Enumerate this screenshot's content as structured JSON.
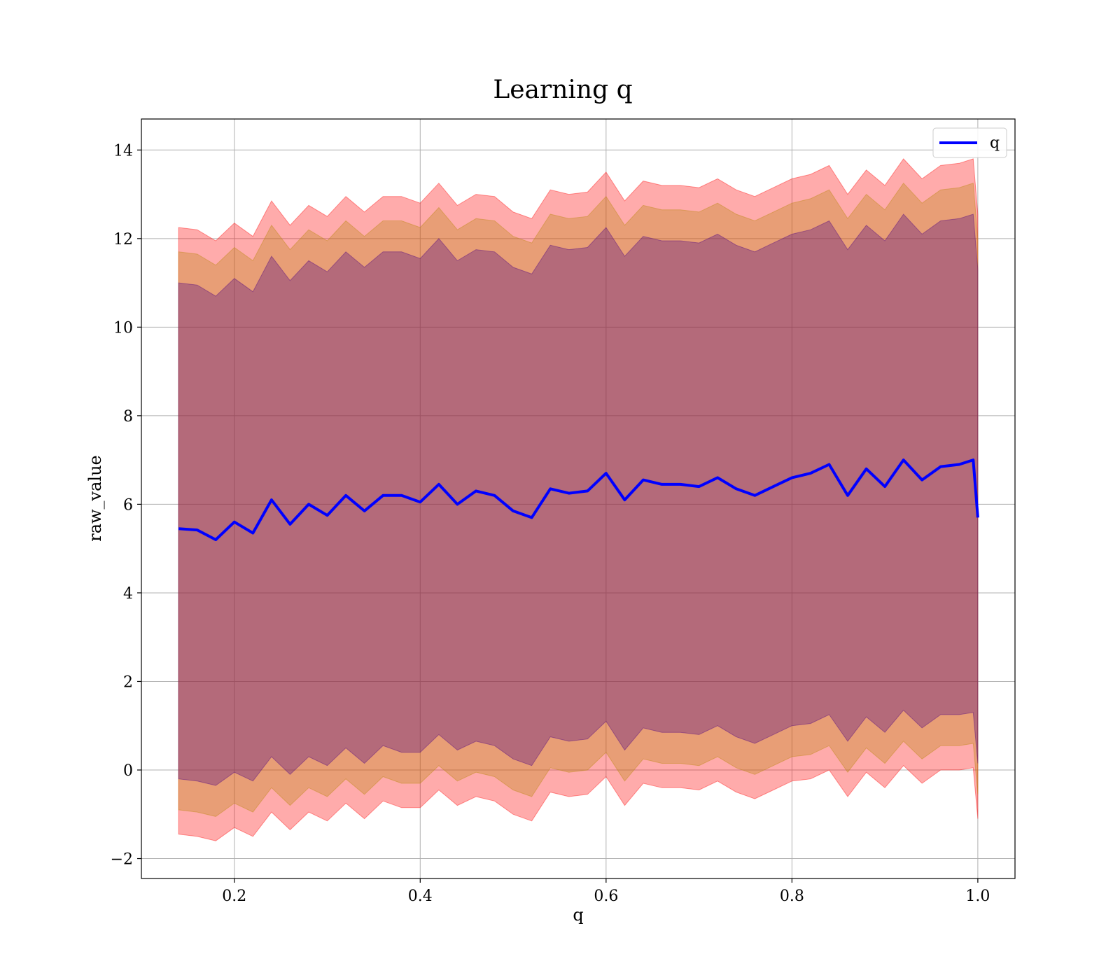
{
  "chart_data": {
    "type": "area",
    "title": "Learning q",
    "xlabel": "q",
    "ylabel": "raw_value",
    "xlim": [
      0.1,
      1.04
    ],
    "ylim": [
      -2.45,
      14.7
    ],
    "grid": true,
    "legend_placement": "top-right",
    "x_ticks": [
      0.2,
      0.4,
      0.6,
      0.8,
      1.0
    ],
    "x_tick_labels": [
      "0.2",
      "0.4",
      "0.6",
      "0.8",
      "1.0"
    ],
    "y_ticks": [
      -2,
      0,
      2,
      4,
      6,
      8,
      10,
      12,
      14
    ],
    "y_tick_labels": [
      "−2",
      "0",
      "2",
      "4",
      "6",
      "8",
      "10",
      "12",
      "14"
    ],
    "x": [
      0.14,
      0.16,
      0.18,
      0.2,
      0.22,
      0.24,
      0.26,
      0.28,
      0.3,
      0.32,
      0.34,
      0.36,
      0.38,
      0.4,
      0.42,
      0.44,
      0.46,
      0.48,
      0.5,
      0.52,
      0.54,
      0.56,
      0.58,
      0.6,
      0.62,
      0.64,
      0.66,
      0.68,
      0.7,
      0.72,
      0.74,
      0.76,
      0.78,
      0.8,
      0.82,
      0.84,
      0.86,
      0.88,
      0.9,
      0.92,
      0.94,
      0.96,
      0.98,
      0.995,
      1.0
    ],
    "series": [
      {
        "name": "q",
        "color": "#0000ff",
        "values": [
          5.45,
          5.42,
          5.2,
          5.6,
          5.35,
          6.1,
          5.55,
          6.0,
          5.75,
          6.2,
          5.85,
          6.2,
          6.2,
          6.05,
          6.45,
          6.0,
          6.3,
          6.2,
          5.85,
          5.7,
          6.35,
          6.25,
          6.3,
          6.7,
          6.1,
          6.55,
          6.45,
          6.45,
          6.4,
          6.6,
          6.35,
          6.2,
          6.4,
          6.6,
          6.7,
          6.9,
          6.2,
          6.8,
          6.4,
          7.0,
          6.55,
          6.85,
          6.9,
          7.0,
          5.7
        ]
      }
    ],
    "bands": [
      {
        "color": "#ff0000",
        "lower": [
          -1.45,
          -1.5,
          -1.6,
          -1.3,
          -1.5,
          -0.95,
          -1.35,
          -0.95,
          -1.15,
          -0.75,
          -1.1,
          -0.7,
          -0.85,
          -0.85,
          -0.45,
          -0.8,
          -0.6,
          -0.7,
          -1.0,
          -1.15,
          -0.5,
          -0.6,
          -0.55,
          -0.15,
          -0.8,
          -0.3,
          -0.4,
          -0.4,
          -0.45,
          -0.25,
          -0.5,
          -0.65,
          -0.45,
          -0.25,
          -0.2,
          0.0,
          -0.6,
          -0.05,
          -0.4,
          0.1,
          -0.3,
          0.0,
          0.0,
          0.05,
          -1.1
        ],
        "upper": [
          12.25,
          12.2,
          11.95,
          12.35,
          12.05,
          12.85,
          12.3,
          12.75,
          12.5,
          12.95,
          12.6,
          12.95,
          12.95,
          12.8,
          13.25,
          12.75,
          13.0,
          12.95,
          12.6,
          12.45,
          13.1,
          13.0,
          13.05,
          13.5,
          12.85,
          13.3,
          13.2,
          13.2,
          13.15,
          13.35,
          13.1,
          12.95,
          13.15,
          13.35,
          13.45,
          13.65,
          13.0,
          13.55,
          13.2,
          13.8,
          13.35,
          13.65,
          13.7,
          13.8,
          12.55
        ]
      },
      {
        "color": "#b8860b",
        "lower": [
          -0.9,
          -0.95,
          -1.05,
          -0.75,
          -0.95,
          -0.4,
          -0.8,
          -0.4,
          -0.6,
          -0.2,
          -0.55,
          -0.15,
          -0.3,
          -0.3,
          0.1,
          -0.25,
          -0.05,
          -0.15,
          -0.45,
          -0.6,
          0.05,
          -0.05,
          0.0,
          0.4,
          -0.25,
          0.25,
          0.15,
          0.15,
          0.1,
          0.3,
          0.05,
          -0.1,
          0.1,
          0.3,
          0.35,
          0.55,
          -0.05,
          0.5,
          0.15,
          0.65,
          0.25,
          0.55,
          0.55,
          0.6,
          -0.55
        ],
        "upper": [
          11.7,
          11.65,
          11.4,
          11.8,
          11.5,
          12.3,
          11.75,
          12.2,
          11.95,
          12.4,
          12.05,
          12.4,
          12.4,
          12.25,
          12.7,
          12.2,
          12.45,
          12.4,
          12.05,
          11.9,
          12.55,
          12.45,
          12.5,
          12.95,
          12.3,
          12.75,
          12.65,
          12.65,
          12.6,
          12.8,
          12.55,
          12.4,
          12.6,
          12.8,
          12.9,
          13.1,
          12.45,
          13.0,
          12.65,
          13.25,
          12.8,
          13.1,
          13.15,
          13.25,
          12.0
        ]
      },
      {
        "color": "#4b0082",
        "lower": [
          -0.2,
          -0.25,
          -0.35,
          -0.05,
          -0.25,
          0.3,
          -0.1,
          0.3,
          0.1,
          0.5,
          0.15,
          0.55,
          0.4,
          0.4,
          0.8,
          0.45,
          0.65,
          0.55,
          0.25,
          0.1,
          0.75,
          0.65,
          0.7,
          1.1,
          0.45,
          0.95,
          0.85,
          0.85,
          0.8,
          1.0,
          0.75,
          0.6,
          0.8,
          1.0,
          1.05,
          1.25,
          0.65,
          1.2,
          0.85,
          1.35,
          0.95,
          1.25,
          1.25,
          1.3,
          0.15
        ],
        "upper": [
          11.0,
          10.95,
          10.7,
          11.1,
          10.8,
          11.6,
          11.05,
          11.5,
          11.25,
          11.7,
          11.35,
          11.7,
          11.7,
          11.55,
          12.0,
          11.5,
          11.75,
          11.7,
          11.35,
          11.2,
          11.85,
          11.75,
          11.8,
          12.25,
          11.6,
          12.05,
          11.95,
          11.95,
          11.9,
          12.1,
          11.85,
          11.7,
          11.9,
          12.1,
          12.2,
          12.4,
          11.75,
          12.3,
          11.95,
          12.55,
          12.1,
          12.4,
          12.45,
          12.55,
          11.3
        ]
      }
    ]
  }
}
